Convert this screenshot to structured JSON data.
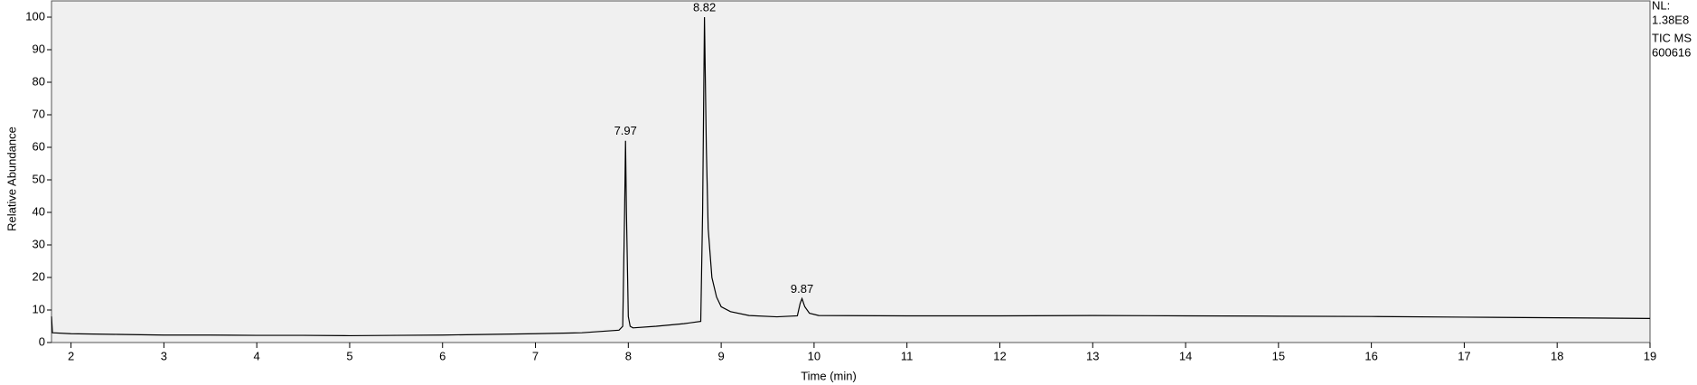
{
  "chart_data": {
    "type": "line",
    "xlabel": "Time (min)",
    "ylabel": "Relative Abundance",
    "info": [
      "NL:",
      "1.38E8",
      "TIC MS",
      "600616"
    ],
    "color": "#000000",
    "x": [
      1.79,
      1.8,
      2,
      2.5,
      3,
      3.5,
      4,
      4.5,
      5,
      5.5,
      6,
      6.5,
      7,
      7.5,
      7.9,
      7.94,
      7.96,
      7.97,
      7.98,
      8.0,
      8.02,
      8.05,
      8.3,
      8.6,
      8.78,
      8.8,
      8.82,
      8.84,
      8.86,
      8.9,
      8.95,
      9.0,
      9.1,
      9.3,
      9.6,
      9.82,
      9.85,
      9.87,
      9.9,
      9.95,
      10.05,
      11,
      12,
      13,
      14,
      15,
      16,
      17,
      18,
      19
    ],
    "values": [
      8,
      3,
      2.7,
      2.5,
      2.3,
      2.3,
      2.2,
      2.2,
      2.1,
      2.2,
      2.3,
      2.5,
      2.7,
      3.0,
      3.8,
      5,
      40,
      62,
      40,
      8,
      5,
      4.5,
      5,
      5.8,
      6.5,
      40,
      100,
      60,
      35,
      20,
      14,
      11,
      9.5,
      8.3,
      7.9,
      8.2,
      12,
      13.5,
      11,
      9,
      8.3,
      8.2,
      8.2,
      8.3,
      8.2,
      8.1,
      8.0,
      7.8,
      7.6,
      7.4
    ],
    "peaks": [
      {
        "x": 7.97,
        "y": 62
      },
      {
        "x": 8.82,
        "y": 100
      },
      {
        "x": 9.87,
        "y": 13.5
      }
    ],
    "xlim": [
      1.79,
      19.0
    ],
    "ylim": [
      0,
      105
    ],
    "xticks": [
      2,
      3,
      4,
      5,
      6,
      7,
      8,
      9,
      10,
      11,
      12,
      13,
      14,
      15,
      16,
      17,
      18,
      19
    ],
    "yticks": [
      0,
      10,
      20,
      30,
      40,
      50,
      60,
      70,
      80,
      90,
      100
    ]
  }
}
